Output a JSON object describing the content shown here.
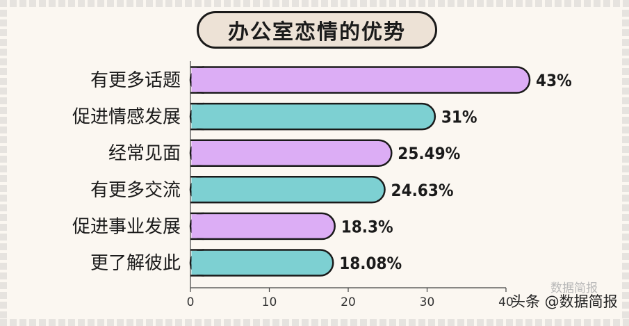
{
  "title": "办公室恋情的优势",
  "watermark": "头条 @数据简报",
  "watermark_ghost": "数据简报",
  "colors": {
    "purple": "#dcadf5",
    "teal": "#7dd0d2",
    "outline": "#1a1a1a",
    "background": "#fbf7f1",
    "title_fill": "#ede2d6"
  },
  "chart_data": {
    "type": "bar",
    "orientation": "horizontal",
    "categories": [
      "有更多话题",
      "促进情感发展",
      "经常见面",
      "有更多交流",
      "促进事业发展",
      "更了解彼此"
    ],
    "values": [
      43,
      31,
      25.49,
      24.63,
      18.3,
      18.08
    ],
    "value_labels": [
      "43%",
      "31%",
      "25.49%",
      "24.63%",
      "18.3%",
      "18.08%"
    ],
    "bar_colors": [
      "#dcadf5",
      "#7dd0d2",
      "#dcadf5",
      "#7dd0d2",
      "#dcadf5",
      "#7dd0d2"
    ],
    "xlim": [
      0,
      40
    ],
    "xticks": [
      0,
      10,
      20,
      30,
      40
    ],
    "xlabel": "",
    "ylabel": "",
    "grid": false,
    "legend": "none"
  }
}
